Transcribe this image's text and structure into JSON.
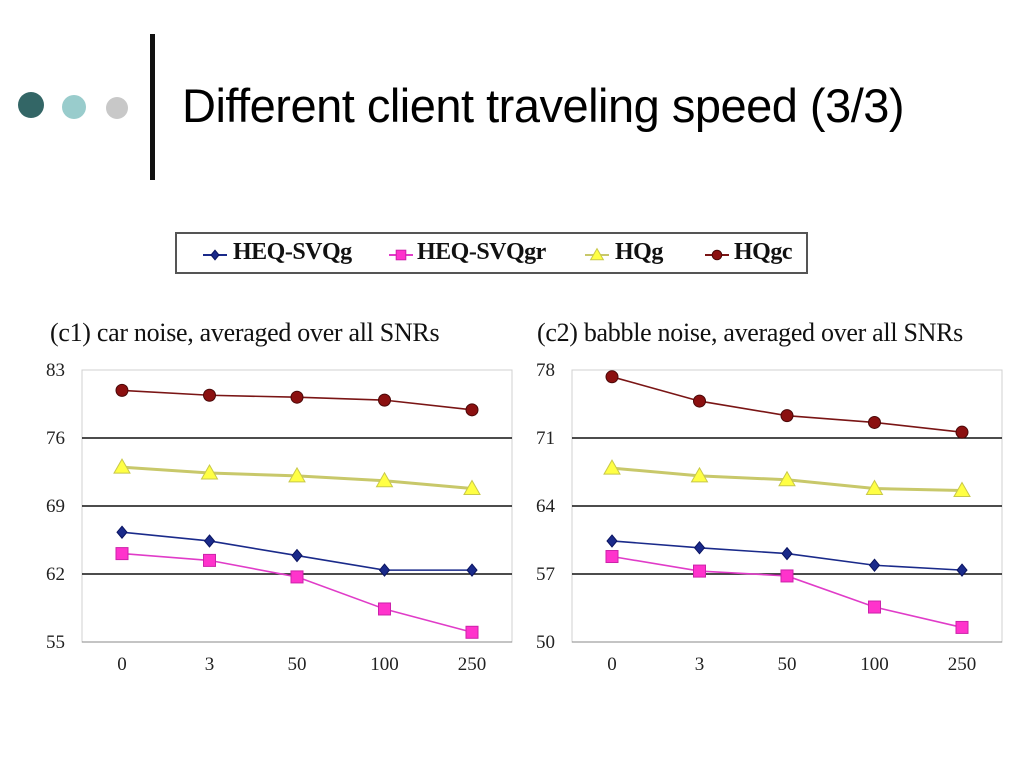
{
  "slide": {
    "title": "Different client traveling speed (3/3)"
  },
  "decor": {
    "dots": [
      "#336666",
      "#99cccc",
      "#c8c8c8"
    ]
  },
  "legend": [
    {
      "label": "HEQ-SVQg",
      "color": "#1a2a8a",
      "marker": "diamond"
    },
    {
      "label": "HEQ-SVQgr",
      "color": "#ff33cc",
      "marker": "square"
    },
    {
      "label": "HQg",
      "color": "#ffff44",
      "marker": "triangle"
    },
    {
      "label": "HQgc",
      "color": "#8b1010",
      "marker": "circle"
    }
  ],
  "chart_data": [
    {
      "type": "line",
      "title": "(c1) car noise, averaged over all SNRs",
      "categories": [
        "0",
        "3",
        "50",
        "100",
        "250"
      ],
      "ylim": [
        55,
        83
      ],
      "yticks": [
        "83",
        "76",
        "69",
        "62",
        "55"
      ],
      "grid": true,
      "series": [
        {
          "name": "HEQ-SVQg",
          "values": [
            66.3,
            65.4,
            63.9,
            62.4,
            62.4
          ]
        },
        {
          "name": "HEQ-SVQgr",
          "values": [
            64.1,
            63.4,
            61.7,
            58.4,
            56.0
          ]
        },
        {
          "name": "HQg",
          "values": [
            73.0,
            72.4,
            72.1,
            71.6,
            70.8
          ]
        },
        {
          "name": "HQgc",
          "values": [
            80.9,
            80.4,
            80.2,
            79.9,
            78.9
          ]
        }
      ]
    },
    {
      "type": "line",
      "title": "(c2) babble noise, averaged over all SNRs",
      "categories": [
        "0",
        "3",
        "50",
        "100",
        "250"
      ],
      "ylim": [
        50,
        78
      ],
      "yticks": [
        "78",
        "71",
        "64",
        "57",
        "50"
      ],
      "grid": true,
      "series": [
        {
          "name": "HEQ-SVQg",
          "values": [
            60.4,
            59.7,
            59.1,
            57.9,
            57.4
          ]
        },
        {
          "name": "HEQ-SVQgr",
          "values": [
            58.8,
            57.3,
            56.8,
            53.6,
            51.5
          ]
        },
        {
          "name": "HQg",
          "values": [
            67.9,
            67.1,
            66.7,
            65.8,
            65.6
          ]
        },
        {
          "name": "HQgc",
          "values": [
            77.3,
            74.8,
            73.3,
            72.6,
            71.6
          ]
        }
      ]
    }
  ]
}
